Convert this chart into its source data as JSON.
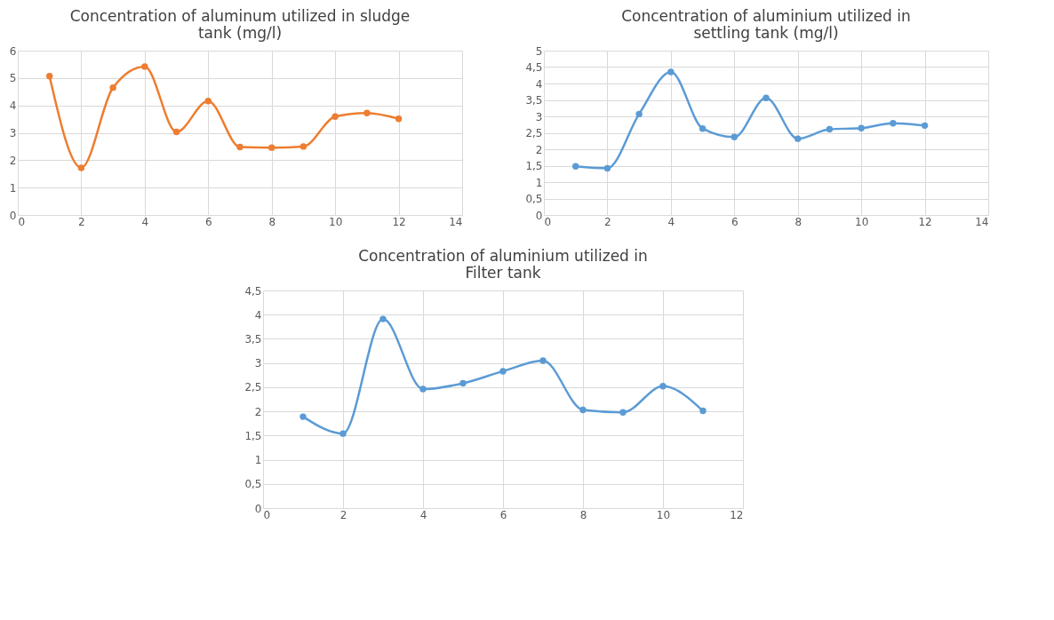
{
  "chart_data": [
    {
      "type": "line",
      "title": "Concentration of aluminum utilized in sludge tank (mg/l)",
      "x": [
        1,
        2,
        3,
        4,
        5,
        6,
        7,
        8,
        9,
        10,
        11,
        12
      ],
      "series": [
        {
          "color": "#ed7d31",
          "values": [
            5.07,
            1.72,
            4.65,
            5.42,
            3.03,
            4.16,
            2.48,
            2.46,
            2.5,
            3.59,
            3.72,
            3.51
          ]
        }
      ],
      "xlim": [
        0,
        14
      ],
      "xticks": [
        0,
        2,
        4,
        6,
        8,
        10,
        12,
        14
      ],
      "ylim": [
        0,
        6
      ],
      "yticks": [
        0,
        1,
        2,
        3,
        4,
        5,
        6
      ],
      "grid": true,
      "marker": "circle",
      "line_style": "solid"
    },
    {
      "type": "line",
      "title": "Concentration of aluminium utilized in settling tank (mg/l)",
      "x": [
        1,
        2,
        3,
        4,
        5,
        6,
        7,
        8,
        9,
        10,
        11,
        12
      ],
      "series": [
        {
          "color": "#5b9bd5",
          "values": [
            1.48,
            1.42,
            3.07,
            4.35,
            2.63,
            2.37,
            3.56,
            2.32,
            2.61,
            2.64,
            2.79,
            2.72
          ]
        }
      ],
      "xlim": [
        0,
        14
      ],
      "xticks": [
        0,
        2,
        4,
        6,
        8,
        10,
        12,
        14
      ],
      "ylim": [
        0,
        5
      ],
      "yticks": [
        0,
        {
          "value": 0.5,
          "label": "0,5"
        },
        1,
        {
          "value": 1.5,
          "label": "1,5"
        },
        2,
        {
          "value": 2.5,
          "label": "2,5"
        },
        3,
        {
          "value": 3.5,
          "label": "3,5"
        },
        4,
        {
          "value": 4.5,
          "label": "4,5"
        },
        5
      ],
      "grid": true,
      "marker": "circle",
      "line_style": "solid"
    },
    {
      "type": "line",
      "title": "Concentration of aluminium utilized in Filter tank",
      "x": [
        1,
        2,
        3,
        4,
        5,
        6,
        7,
        8,
        9,
        10,
        11
      ],
      "series": [
        {
          "color": "#5b9bd5",
          "values": [
            1.89,
            1.54,
            3.91,
            2.46,
            2.58,
            2.83,
            3.05,
            2.03,
            1.98,
            2.52,
            2.01
          ]
        }
      ],
      "xlim": [
        0,
        12
      ],
      "xticks": [
        0,
        2,
        4,
        6,
        8,
        10,
        12
      ],
      "ylim": [
        0,
        4.5
      ],
      "yticks": [
        0,
        {
          "value": 0.5,
          "label": "0,5"
        },
        1,
        {
          "value": 1.5,
          "label": "1,5"
        },
        2,
        {
          "value": 2.5,
          "label": "2,5"
        },
        3,
        {
          "value": 3.5,
          "label": "3,5"
        },
        4,
        {
          "value": 4.5,
          "label": "4,5"
        }
      ],
      "grid": true,
      "marker": "circle",
      "line_style": "solid"
    }
  ]
}
